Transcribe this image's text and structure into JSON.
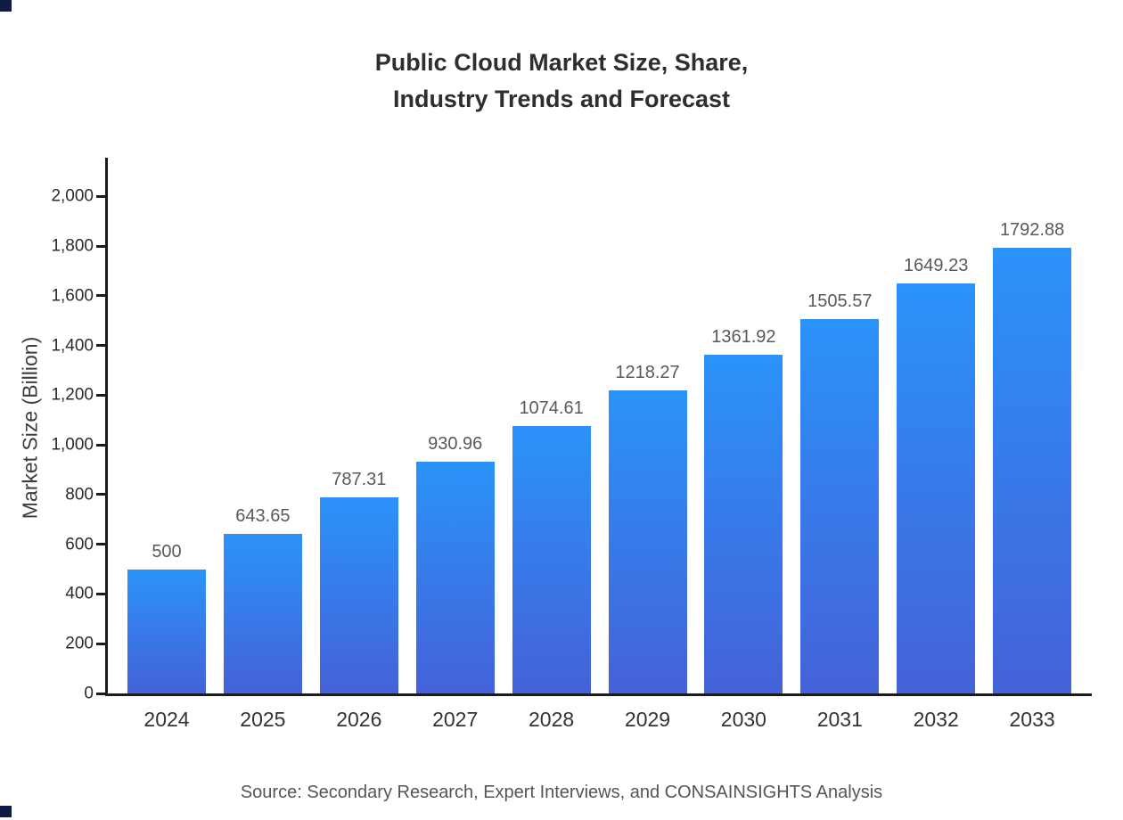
{
  "header": {
    "title_line1": "Public Cloud Market Size, Share,",
    "title_line2": "Industry Trends and Forecast"
  },
  "footer": {
    "source": "Source: Secondary Research, Expert Interviews, and CONSAINSIGHTS Analysis"
  },
  "chart_data": {
    "type": "bar",
    "title": "Public Cloud Market Size, Share, Industry Trends and Forecast",
    "categories": [
      "2024",
      "2025",
      "2026",
      "2027",
      "2028",
      "2029",
      "2030",
      "2031",
      "2032",
      "2033"
    ],
    "values": [
      500,
      643.65,
      787.31,
      930.96,
      1074.61,
      1218.27,
      1361.92,
      1505.57,
      1649.23,
      1792.88
    ],
    "value_labels": [
      "500",
      "643.65",
      "787.31",
      "930.96",
      "1074.61",
      "1218.27",
      "1361.92",
      "1505.57",
      "1649.23",
      "1792.88"
    ],
    "xlabel": "",
    "ylabel": "Market Size (Billion)",
    "ylim": [
      0,
      2155
    ],
    "yticks": [
      {
        "value": 0,
        "label": "0"
      },
      {
        "value": 200,
        "label": "200"
      },
      {
        "value": 400,
        "label": "400"
      },
      {
        "value": 600,
        "label": "600"
      },
      {
        "value": 800,
        "label": "800"
      },
      {
        "value": 1000,
        "label": "1,000"
      },
      {
        "value": 1200,
        "label": "1,200"
      },
      {
        "value": 1400,
        "label": "1,400"
      },
      {
        "value": 1600,
        "label": "1,600"
      },
      {
        "value": 1800,
        "label": "1,800"
      },
      {
        "value": 2000,
        "label": "2,000"
      }
    ],
    "grid": false,
    "legend": "none",
    "bar_gradient_top": "#2a93f9",
    "bar_gradient_bottom": "#4561d9",
    "axis_color": "#1c1c1c"
  }
}
